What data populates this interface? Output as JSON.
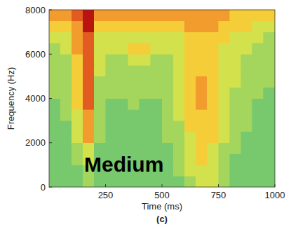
{
  "chart_data": {
    "type": "heatmap",
    "caption": "(c)",
    "annotation": "Medium",
    "x_label": "Time (ms)",
    "y_label": "Frequency (Hz)",
    "xlim": [
      0,
      1000
    ],
    "xticks": [
      250,
      500,
      750,
      1000
    ],
    "ylim": [
      0,
      8000
    ],
    "yticks": [
      0,
      2000,
      4000,
      6000,
      8000
    ],
    "x": [
      25,
      75,
      125,
      175,
      225,
      275,
      325,
      375,
      425,
      475,
      525,
      575,
      625,
      675,
      725,
      775,
      825,
      875,
      925,
      975
    ],
    "y": [
      250,
      750,
      1250,
      1750,
      2250,
      2750,
      3250,
      3750,
      4250,
      4750,
      5250,
      5750,
      6250,
      6750,
      7250,
      7750
    ],
    "cells": [
      [
        4,
        4,
        4,
        5,
        4,
        4,
        4,
        4,
        4,
        4,
        4,
        4,
        5,
        6,
        6,
        5,
        4,
        4,
        4,
        4
      ],
      [
        4,
        4,
        4,
        5,
        4,
        4,
        4,
        4,
        4,
        4,
        4,
        5,
        6,
        6,
        6,
        5,
        4,
        4,
        4,
        4
      ],
      [
        4,
        4,
        5,
        6,
        4,
        4,
        4,
        4,
        4,
        4,
        4,
        5,
        6,
        7,
        6,
        5,
        4,
        4,
        4,
        4
      ],
      [
        4,
        4,
        5,
        6,
        4,
        4,
        4,
        4,
        4,
        4,
        4,
        5,
        6,
        7,
        6,
        5,
        5,
        4,
        4,
        4
      ],
      [
        4,
        4,
        6,
        8,
        5,
        4,
        4,
        4,
        4,
        4,
        5,
        5,
        6,
        7,
        7,
        6,
        5,
        4,
        4,
        4
      ],
      [
        4,
        4,
        6,
        8,
        5,
        4,
        4,
        4,
        4,
        4,
        5,
        5,
        7,
        7,
        7,
        6,
        5,
        5,
        4,
        4
      ],
      [
        4,
        5,
        6,
        8,
        5,
        4,
        4,
        4,
        4,
        4,
        5,
        6,
        7,
        7,
        7,
        6,
        5,
        5,
        4,
        4
      ],
      [
        4,
        5,
        7,
        9,
        5,
        4,
        4,
        5,
        4,
        4,
        5,
        6,
        7,
        8,
        7,
        6,
        5,
        5,
        4,
        4
      ],
      [
        5,
        5,
        7,
        9,
        5,
        5,
        5,
        5,
        5,
        5,
        5,
        6,
        7,
        8,
        7,
        6,
        5,
        5,
        5,
        4
      ],
      [
        5,
        5,
        7,
        9,
        5,
        5,
        5,
        5,
        5,
        5,
        5,
        6,
        7,
        8,
        7,
        6,
        6,
        5,
        5,
        5
      ],
      [
        5,
        5,
        7,
        9,
        6,
        5,
        5,
        5,
        5,
        5,
        5,
        6,
        7,
        7,
        7,
        6,
        6,
        5,
        5,
        5
      ],
      [
        5,
        5,
        7,
        9,
        6,
        5,
        5,
        6,
        6,
        5,
        5,
        6,
        7,
        7,
        7,
        6,
        6,
        5,
        5,
        5
      ],
      [
        5,
        6,
        8,
        9,
        6,
        6,
        6,
        7,
        7,
        6,
        6,
        6,
        7,
        7,
        7,
        6,
        6,
        6,
        5,
        5
      ],
      [
        6,
        6,
        8,
        9,
        6,
        6,
        6,
        6,
        6,
        6,
        6,
        6,
        7,
        7,
        7,
        7,
        6,
        6,
        6,
        5
      ],
      [
        7,
        7,
        8,
        10,
        7,
        7,
        7,
        7,
        7,
        7,
        7,
        7,
        8,
        8,
        8,
        7,
        7,
        7,
        6,
        6
      ],
      [
        8,
        8,
        9,
        10,
        8,
        8,
        8,
        8,
        8,
        8,
        8,
        8,
        8,
        8,
        8,
        8,
        7,
        7,
        7,
        7
      ]
    ]
  }
}
